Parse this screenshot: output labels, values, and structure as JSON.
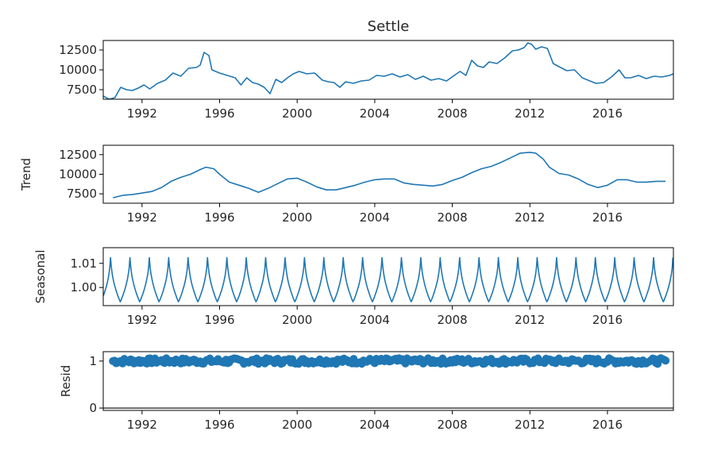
{
  "chart_data": [
    {
      "type": "line",
      "title": "Settle",
      "ylabel": "",
      "xlim": [
        1990.0,
        2019.4
      ],
      "ylim": [
        6300,
        13700
      ],
      "yticks": [
        7500,
        10000,
        12500
      ],
      "xticks": [
        1992,
        1996,
        2000,
        2004,
        2008,
        2012,
        2016
      ],
      "color": "#1f77b4",
      "series": [
        {
          "x": [
            1990.0,
            1990.3,
            1990.6,
            1990.9,
            1991.2,
            1991.5,
            1991.8,
            1992.1,
            1992.4,
            1992.8,
            1993.2,
            1993.6,
            1994.0,
            1994.4,
            1994.8,
            1995.0,
            1995.2,
            1995.45,
            1995.6,
            1996.0,
            1996.4,
            1996.8,
            1997.1,
            1997.4,
            1997.7,
            1998.0,
            1998.3,
            1998.6,
            1998.9,
            1999.2,
            1999.5,
            1999.8,
            2000.1,
            2000.5,
            2000.9,
            2001.3,
            2001.6,
            2001.9,
            2002.2,
            2002.5,
            2002.9,
            2003.3,
            2003.7,
            2004.1,
            2004.5,
            2004.9,
            2005.3,
            2005.7,
            2006.1,
            2006.5,
            2006.9,
            2007.3,
            2007.7,
            2008.1,
            2008.4,
            2008.7,
            2009.0,
            2009.3,
            2009.6,
            2009.9,
            2010.3,
            2010.7,
            2011.1,
            2011.4,
            2011.7,
            2011.9,
            2012.1,
            2012.3,
            2012.6,
            2012.9,
            2013.2,
            2013.5,
            2013.9,
            2014.3,
            2014.7,
            2015.0,
            2015.4,
            2015.8,
            2016.2,
            2016.6,
            2016.9,
            2017.2,
            2017.6,
            2018.0,
            2018.4,
            2018.8,
            2019.2,
            2019.4
          ],
          "y": [
            6700,
            6300,
            6500,
            7800,
            7500,
            7400,
            7700,
            8100,
            7600,
            8300,
            8700,
            9600,
            9200,
            10200,
            10300,
            10600,
            12200,
            11800,
            10000,
            9600,
            9300,
            9000,
            8100,
            9000,
            8400,
            8200,
            7800,
            7000,
            8800,
            8400,
            9000,
            9500,
            9800,
            9500,
            9600,
            8700,
            8500,
            8400,
            7800,
            8500,
            8300,
            8600,
            8700,
            9300,
            9200,
            9500,
            9100,
            9400,
            8800,
            9200,
            8700,
            8900,
            8600,
            9300,
            9800,
            9300,
            11200,
            10500,
            10300,
            11000,
            10800,
            11500,
            12400,
            12500,
            12800,
            13400,
            13200,
            12600,
            12900,
            12700,
            10800,
            10400,
            9900,
            10000,
            9000,
            8700,
            8300,
            8400,
            9100,
            10000,
            9000,
            9000,
            9300,
            8900,
            9200,
            9100,
            9300,
            9500
          ]
        }
      ]
    },
    {
      "type": "line",
      "title": "",
      "ylabel": "Trend",
      "xlim": [
        1990.0,
        2019.4
      ],
      "ylim": [
        6300,
        13700
      ],
      "yticks": [
        7500,
        10000,
        12500
      ],
      "xticks": [
        1992,
        1996,
        2000,
        2004,
        2008,
        2012,
        2016
      ],
      "color": "#1f77b4",
      "series": [
        {
          "x": [
            1990.5,
            1991.0,
            1991.5,
            1992.0,
            1992.5,
            1993.0,
            1993.5,
            1994.0,
            1994.5,
            1995.0,
            1995.3,
            1995.7,
            1996.0,
            1996.5,
            1997.0,
            1997.5,
            1998.0,
            1998.5,
            1999.0,
            1999.5,
            2000.0,
            2000.5,
            2001.0,
            2001.5,
            2002.0,
            2002.5,
            2003.0,
            2003.5,
            2004.0,
            2004.5,
            2005.0,
            2005.5,
            2006.0,
            2006.5,
            2007.0,
            2007.5,
            2008.0,
            2008.5,
            2009.0,
            2009.5,
            2010.0,
            2010.5,
            2011.0,
            2011.5,
            2012.0,
            2012.3,
            2012.7,
            2013.0,
            2013.5,
            2014.0,
            2014.5,
            2015.0,
            2015.5,
            2016.0,
            2016.5,
            2017.0,
            2017.5,
            2018.0,
            2018.5,
            2019.0
          ],
          "y": [
            7000,
            7300,
            7400,
            7600,
            7800,
            8300,
            9100,
            9600,
            10000,
            10600,
            10900,
            10700,
            10000,
            9000,
            8600,
            8200,
            7700,
            8200,
            8800,
            9400,
            9500,
            9000,
            8400,
            8000,
            8000,
            8300,
            8600,
            9000,
            9300,
            9400,
            9400,
            8900,
            8700,
            8600,
            8500,
            8700,
            9200,
            9600,
            10200,
            10700,
            11000,
            11500,
            12100,
            12700,
            12800,
            12700,
            11900,
            10900,
            10100,
            9900,
            9400,
            8700,
            8300,
            8600,
            9300,
            9300,
            9000,
            9000,
            9100,
            9100
          ]
        }
      ]
    },
    {
      "type": "line",
      "title": "",
      "ylabel": "Seasonal",
      "xlim": [
        1990.0,
        2019.4
      ],
      "ylim": [
        0.9925,
        1.0165
      ],
      "yticks": [
        1.0,
        1.01
      ],
      "ytick_labels": [
        "1.00",
        "1.01"
      ],
      "xticks": [
        1992,
        1996,
        2000,
        2004,
        2008,
        2012,
        2016
      ],
      "color": "#1f77b4",
      "period_years": 1.0,
      "phase_peak": 0.38,
      "min_value": 0.994,
      "max_value": 1.015
    },
    {
      "type": "scatter",
      "title": "",
      "ylabel": "Resid",
      "xlim": [
        1990.0,
        2019.4
      ],
      "ylim": [
        -0.05,
        1.2
      ],
      "yticks": [
        0,
        1
      ],
      "xticks": [
        1992,
        1996,
        2000,
        2004,
        2008,
        2012,
        2016
      ],
      "color": "#1f77b4",
      "x_range": [
        1990.5,
        2019.0
      ],
      "center_value": 1.0,
      "spread": 0.06,
      "baseline": 0
    }
  ]
}
